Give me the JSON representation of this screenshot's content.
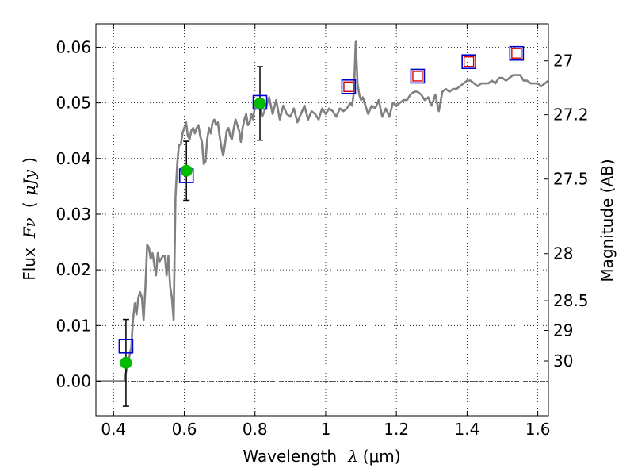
{
  "chart_data": {
    "type": "scatter",
    "title": "",
    "xlabel": "Wavelength  λ (μm)",
    "xlabel_parts": {
      "prefix": "Wavelength",
      "symbol": "λ",
      "unit": "(μm)"
    },
    "ylabel": "Flux  Fν  ( μJy )",
    "ylabel_parts": {
      "prefix": "Flux",
      "symbol": "Fν",
      "open": "(",
      "unit": "μJy",
      "close": ")"
    },
    "y2label": "Magnitude (AB)",
    "xlim": [
      0.35,
      1.63
    ],
    "ylim": [
      -0.0062,
      0.0642
    ],
    "x_ticks": [
      {
        "value": 0.4,
        "label": "0.4"
      },
      {
        "value": 0.6,
        "label": "0.6"
      },
      {
        "value": 0.8,
        "label": "0.8"
      },
      {
        "value": 1.0,
        "label": "1"
      },
      {
        "value": 1.2,
        "label": "1.2"
      },
      {
        "value": 1.4,
        "label": "1.4"
      },
      {
        "value": 1.6,
        "label": "1.6"
      }
    ],
    "y_ticks": [
      {
        "value": 0.0,
        "label": "0.00"
      },
      {
        "value": 0.01,
        "label": "0.01"
      },
      {
        "value": 0.02,
        "label": "0.02"
      },
      {
        "value": 0.03,
        "label": "0.03"
      },
      {
        "value": 0.04,
        "label": "0.04"
      },
      {
        "value": 0.05,
        "label": "0.05"
      },
      {
        "value": 0.06,
        "label": "0.06"
      }
    ],
    "y2_ticks": [
      {
        "value": 27.0,
        "label": "27"
      },
      {
        "value": 27.2,
        "label": "27.2"
      },
      {
        "value": 27.5,
        "label": "27.5"
      },
      {
        "value": 28.0,
        "label": "28"
      },
      {
        "value": 28.5,
        "label": "28.5"
      },
      {
        "value": 29.0,
        "label": "29"
      },
      {
        "value": 30.0,
        "label": "30"
      }
    ],
    "grid": true,
    "colors": {
      "model": "#808080",
      "observed": "#00bb00",
      "model_phot": "#0000cc",
      "upper": "#dd0000",
      "errorbar": "#000000",
      "zero_line": "#555555"
    },
    "series": [
      {
        "name": "model spectrum",
        "style": "line",
        "points": [
          [
            0.35,
            0.0
          ],
          [
            0.43,
            0.0
          ],
          [
            0.44,
            0.003
          ],
          [
            0.45,
            0.006
          ],
          [
            0.455,
            0.011
          ],
          [
            0.46,
            0.014
          ],
          [
            0.465,
            0.012
          ],
          [
            0.47,
            0.015
          ],
          [
            0.475,
            0.016
          ],
          [
            0.48,
            0.015
          ],
          [
            0.485,
            0.011
          ],
          [
            0.49,
            0.017
          ],
          [
            0.495,
            0.0245
          ],
          [
            0.5,
            0.024
          ],
          [
            0.505,
            0.022
          ],
          [
            0.51,
            0.023
          ],
          [
            0.515,
            0.021
          ],
          [
            0.52,
            0.019
          ],
          [
            0.525,
            0.023
          ],
          [
            0.53,
            0.0215
          ],
          [
            0.535,
            0.022
          ],
          [
            0.54,
            0.0225
          ],
          [
            0.545,
            0.0225
          ],
          [
            0.55,
            0.019
          ],
          [
            0.555,
            0.0225
          ],
          [
            0.56,
            0.017
          ],
          [
            0.565,
            0.015
          ],
          [
            0.57,
            0.011
          ],
          [
            0.575,
            0.033
          ],
          [
            0.58,
            0.039
          ],
          [
            0.585,
            0.0425
          ],
          [
            0.59,
            0.0425
          ],
          [
            0.595,
            0.0445
          ],
          [
            0.6,
            0.0455
          ],
          [
            0.605,
            0.0465
          ],
          [
            0.61,
            0.044
          ],
          [
            0.615,
            0.0435
          ],
          [
            0.62,
            0.045
          ],
          [
            0.625,
            0.0455
          ],
          [
            0.63,
            0.0445
          ],
          [
            0.635,
            0.0455
          ],
          [
            0.64,
            0.046
          ],
          [
            0.645,
            0.044
          ],
          [
            0.65,
            0.043
          ],
          [
            0.655,
            0.039
          ],
          [
            0.66,
            0.0395
          ],
          [
            0.665,
            0.0435
          ],
          [
            0.67,
            0.0455
          ],
          [
            0.675,
            0.0445
          ],
          [
            0.68,
            0.0465
          ],
          [
            0.685,
            0.047
          ],
          [
            0.69,
            0.046
          ],
          [
            0.695,
            0.0465
          ],
          [
            0.7,
            0.044
          ],
          [
            0.705,
            0.042
          ],
          [
            0.71,
            0.0405
          ],
          [
            0.715,
            0.0425
          ],
          [
            0.72,
            0.045
          ],
          [
            0.725,
            0.0455
          ],
          [
            0.73,
            0.044
          ],
          [
            0.735,
            0.0435
          ],
          [
            0.74,
            0.0455
          ],
          [
            0.745,
            0.047
          ],
          [
            0.75,
            0.046
          ],
          [
            0.755,
            0.045
          ],
          [
            0.76,
            0.043
          ],
          [
            0.765,
            0.0455
          ],
          [
            0.77,
            0.047
          ],
          [
            0.775,
            0.048
          ],
          [
            0.78,
            0.046
          ],
          [
            0.785,
            0.0465
          ],
          [
            0.79,
            0.048
          ],
          [
            0.795,
            0.047
          ],
          [
            0.8,
            0.0495
          ],
          [
            0.81,
            0.05
          ],
          [
            0.82,
            0.0475
          ],
          [
            0.83,
            0.049
          ],
          [
            0.84,
            0.051
          ],
          [
            0.85,
            0.048
          ],
          [
            0.86,
            0.0505
          ],
          [
            0.87,
            0.047
          ],
          [
            0.88,
            0.0495
          ],
          [
            0.89,
            0.048
          ],
          [
            0.9,
            0.0475
          ],
          [
            0.91,
            0.049
          ],
          [
            0.92,
            0.0465
          ],
          [
            0.93,
            0.048
          ],
          [
            0.94,
            0.0495
          ],
          [
            0.95,
            0.047
          ],
          [
            0.96,
            0.0485
          ],
          [
            0.97,
            0.048
          ],
          [
            0.98,
            0.047
          ],
          [
            0.99,
            0.049
          ],
          [
            1.0,
            0.048
          ],
          [
            1.01,
            0.049
          ],
          [
            1.02,
            0.0485
          ],
          [
            1.03,
            0.0475
          ],
          [
            1.04,
            0.049
          ],
          [
            1.05,
            0.0485
          ],
          [
            1.06,
            0.049
          ],
          [
            1.065,
            0.0495
          ],
          [
            1.07,
            0.05
          ],
          [
            1.075,
            0.0495
          ],
          [
            1.08,
            0.052
          ],
          [
            1.085,
            0.061
          ],
          [
            1.09,
            0.0535
          ],
          [
            1.095,
            0.0515
          ],
          [
            1.1,
            0.0505
          ],
          [
            1.105,
            0.051
          ],
          [
            1.11,
            0.05
          ],
          [
            1.12,
            0.048
          ],
          [
            1.13,
            0.0495
          ],
          [
            1.14,
            0.049
          ],
          [
            1.15,
            0.0505
          ],
          [
            1.16,
            0.0475
          ],
          [
            1.17,
            0.049
          ],
          [
            1.18,
            0.0475
          ],
          [
            1.19,
            0.05
          ],
          [
            1.2,
            0.0495
          ],
          [
            1.21,
            0.05
          ],
          [
            1.22,
            0.0505
          ],
          [
            1.23,
            0.0505
          ],
          [
            1.24,
            0.0515
          ],
          [
            1.25,
            0.052
          ],
          [
            1.26,
            0.052
          ],
          [
            1.27,
            0.0515
          ],
          [
            1.28,
            0.0505
          ],
          [
            1.29,
            0.051
          ],
          [
            1.3,
            0.0495
          ],
          [
            1.31,
            0.0515
          ],
          [
            1.32,
            0.0485
          ],
          [
            1.33,
            0.052
          ],
          [
            1.34,
            0.0525
          ],
          [
            1.35,
            0.052
          ],
          [
            1.36,
            0.0525
          ],
          [
            1.37,
            0.0525
          ],
          [
            1.38,
            0.053
          ],
          [
            1.39,
            0.0535
          ],
          [
            1.4,
            0.054
          ],
          [
            1.41,
            0.054
          ],
          [
            1.42,
            0.0535
          ],
          [
            1.43,
            0.053
          ],
          [
            1.44,
            0.0535
          ],
          [
            1.45,
            0.0535
          ],
          [
            1.46,
            0.0535
          ],
          [
            1.47,
            0.054
          ],
          [
            1.48,
            0.0535
          ],
          [
            1.49,
            0.0545
          ],
          [
            1.5,
            0.0545
          ],
          [
            1.51,
            0.054
          ],
          [
            1.52,
            0.0545
          ],
          [
            1.53,
            0.055
          ],
          [
            1.54,
            0.055
          ],
          [
            1.55,
            0.055
          ],
          [
            1.56,
            0.054
          ],
          [
            1.57,
            0.054
          ],
          [
            1.58,
            0.0535
          ],
          [
            1.59,
            0.0535
          ],
          [
            1.6,
            0.0535
          ],
          [
            1.61,
            0.053
          ],
          [
            1.62,
            0.0535
          ],
          [
            1.63,
            0.054
          ]
        ]
      },
      {
        "name": "observed photometry",
        "style": "circle",
        "points": [
          {
            "x": 0.435,
            "y": 0.0033,
            "yerr": 0.0078
          },
          {
            "x": 0.606,
            "y": 0.0378,
            "yerr": 0.0053
          },
          {
            "x": 0.814,
            "y": 0.0499,
            "yerr": 0.0066
          }
        ]
      },
      {
        "name": "model photometry",
        "style": "square",
        "points": [
          {
            "x": 0.435,
            "y": 0.0063
          },
          {
            "x": 0.606,
            "y": 0.0369
          },
          {
            "x": 0.814,
            "y": 0.0501
          },
          {
            "x": 1.065,
            "y": 0.0529
          },
          {
            "x": 1.26,
            "y": 0.0548
          },
          {
            "x": 1.405,
            "y": 0.0574
          },
          {
            "x": 1.54,
            "y": 0.0589
          }
        ]
      },
      {
        "name": "upper limits",
        "style": "small-square",
        "points": [
          {
            "x": 1.065,
            "y": 0.0529
          },
          {
            "x": 1.26,
            "y": 0.0548
          },
          {
            "x": 1.405,
            "y": 0.0574
          },
          {
            "x": 1.54,
            "y": 0.0589
          }
        ]
      }
    ]
  }
}
